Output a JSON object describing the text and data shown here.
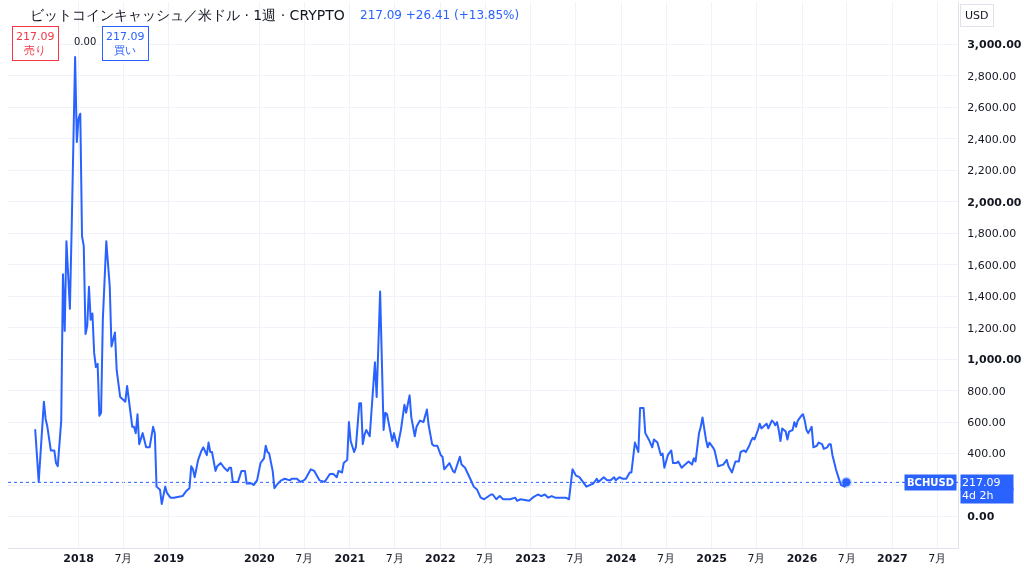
{
  "chart_data": {
    "type": "line",
    "title": "ビットコインキャッシュ／米ドル · 1週 · CRYPTO",
    "subtitle": "217.09 +26.41 (+13.85%)",
    "ylabel": "USD",
    "annotations": [
      "217.09\n売り",
      "0.00",
      "217.09\n買い",
      "217.09",
      "4d 2h"
    ],
    "xlim": [
      "2017-03-22",
      "2027-09-23"
    ],
    "xticks": [
      {
        "value": "2018-01-01",
        "label": "2018"
      },
      {
        "value": "2018-07-01",
        "label": "7月"
      },
      {
        "value": "2019-01-01",
        "label": "2019"
      },
      {
        "value": "2020-01-01",
        "label": "2020"
      },
      {
        "value": "2020-07-01",
        "label": "7月"
      },
      {
        "value": "2021-01-01",
        "label": "2021"
      },
      {
        "value": "2021-07-01",
        "label": "7月"
      },
      {
        "value": "2022-01-01",
        "label": "2022"
      },
      {
        "value": "2022-07-01",
        "label": "7月"
      },
      {
        "value": "2023-01-01",
        "label": "2023"
      },
      {
        "value": "2023-07-01",
        "label": "7月"
      },
      {
        "value": "2024-01-01",
        "label": "2024"
      },
      {
        "value": "2024-07-01",
        "label": "7月"
      },
      {
        "value": "2025-01-01",
        "label": "2025"
      },
      {
        "value": "2025-07-01",
        "label": "7月"
      },
      {
        "value": "2026-01-01",
        "label": "2026"
      },
      {
        "value": "2026-07-01",
        "label": "7月"
      },
      {
        "value": "2027-01-01",
        "label": "2027"
      },
      {
        "value": "2027-07-01",
        "label": "7月"
      }
    ],
    "ylim": [
      -200,
      3270
    ],
    "yticks": [
      {
        "value": 0,
        "label": "0.00"
      },
      {
        "value": 200,
        "label": null
      },
      {
        "value": 400,
        "label": "400.00"
      },
      {
        "value": 600,
        "label": "600.00"
      },
      {
        "value": 800,
        "label": "800.00"
      },
      {
        "value": 1000,
        "label": "1,000.00"
      },
      {
        "value": 1200,
        "label": "1,200.00"
      },
      {
        "value": 1400,
        "label": "1,400.00"
      },
      {
        "value": 1600,
        "label": "1,600.00"
      },
      {
        "value": 1800,
        "label": "1,800.00"
      },
      {
        "value": 2000,
        "label": "2,000.00"
      },
      {
        "value": 2200,
        "label": "2,200.00"
      },
      {
        "value": 2400,
        "label": "2,400.00"
      },
      {
        "value": 2600,
        "label": "2,600.00"
      },
      {
        "value": 2800,
        "label": "2,800.00"
      },
      {
        "value": 3000,
        "label": "3,000.00"
      }
    ],
    "grid": true,
    "ref_lines": [
      {
        "axis": "y",
        "value": 217.09,
        "label": "BCHUSD",
        "color": "#2962ff",
        "line_style": "dotted"
      }
    ],
    "series": [
      {
        "color": "#2962ff",
        "x": [
          "2017-07-10",
          "2017-07-24",
          "2017-08-14",
          "2017-08-21",
          "2017-08-28",
          "2017-09-11",
          "2017-09-25",
          "2017-10-02",
          "2017-10-09",
          "2017-10-23",
          "2017-10-30",
          "2017-11-06",
          "2017-11-13",
          "2017-11-27",
          "2017-12-04",
          "2017-12-18",
          "2017-12-25",
          "2018-01-01",
          "2018-01-08",
          "2018-01-15",
          "2018-01-22",
          "2018-01-29",
          "2018-02-05",
          "2018-02-12",
          "2018-02-19",
          "2018-02-26",
          "2018-03-05",
          "2018-03-12",
          "2018-03-19",
          "2018-03-26",
          "2018-04-02",
          "2018-04-09",
          "2018-04-23",
          "2018-05-07",
          "2018-05-14",
          "2018-05-28",
          "2018-06-04",
          "2018-06-18",
          "2018-06-25",
          "2018-07-09",
          "2018-07-16",
          "2018-08-06",
          "2018-08-13",
          "2018-08-20",
          "2018-08-27",
          "2018-09-03",
          "2018-09-17",
          "2018-10-01",
          "2018-10-15",
          "2018-10-29",
          "2018-11-05",
          "2018-11-12",
          "2018-11-26",
          "2018-12-03",
          "2018-12-17",
          "2018-12-24",
          "2019-01-07",
          "2019-01-21",
          "2019-02-25",
          "2019-03-11",
          "2019-03-25",
          "2019-04-01",
          "2019-04-08",
          "2019-04-15",
          "2019-04-29",
          "2019-05-13",
          "2019-05-20",
          "2019-06-03",
          "2019-06-10",
          "2019-06-17",
          "2019-06-24",
          "2019-07-08",
          "2019-07-15",
          "2019-07-29",
          "2019-08-12",
          "2019-08-26",
          "2019-09-02",
          "2019-09-09",
          "2019-09-16",
          "2019-10-07",
          "2019-10-21",
          "2019-11-04",
          "2019-11-11",
          "2019-12-02",
          "2019-12-09",
          "2019-12-23",
          "2020-01-06",
          "2020-01-20",
          "2020-01-27",
          "2020-02-03",
          "2020-02-10",
          "2020-02-24",
          "2020-03-02",
          "2020-03-16",
          "2020-03-30",
          "2020-04-13",
          "2020-05-04",
          "2020-05-11",
          "2020-06-01",
          "2020-06-15",
          "2020-06-29",
          "2020-07-06",
          "2020-07-27",
          "2020-08-10",
          "2020-08-31",
          "2020-09-21",
          "2020-10-12",
          "2020-10-26",
          "2020-11-09",
          "2020-11-16",
          "2020-11-30",
          "2020-12-07",
          "2020-12-21",
          "2020-12-28",
          "2021-01-04",
          "2021-01-18",
          "2021-01-25",
          "2021-02-08",
          "2021-02-15",
          "2021-02-22",
          "2021-03-01",
          "2021-03-08",
          "2021-03-22",
          "2021-04-12",
          "2021-04-19",
          "2021-05-03",
          "2021-05-17",
          "2021-05-24",
          "2021-05-31",
          "2021-06-07",
          "2021-06-21",
          "2021-06-28",
          "2021-07-12",
          "2021-07-26",
          "2021-08-09",
          "2021-08-16",
          "2021-08-30",
          "2021-09-06",
          "2021-09-20",
          "2021-09-27",
          "2021-10-11",
          "2021-10-25",
          "2021-11-08",
          "2021-11-15",
          "2021-11-29",
          "2021-12-06",
          "2021-12-20",
          "2022-01-03",
          "2022-01-10",
          "2022-01-17",
          "2022-02-07",
          "2022-02-21",
          "2022-02-28",
          "2022-03-21",
          "2022-03-28",
          "2022-04-11",
          "2022-05-02",
          "2022-05-16",
          "2022-05-30",
          "2022-06-13",
          "2022-06-27",
          "2022-07-25",
          "2022-08-01",
          "2022-08-15",
          "2022-08-29",
          "2022-09-12",
          "2022-10-10",
          "2022-10-31",
          "2022-11-07",
          "2022-11-21",
          "2022-12-26",
          "2023-01-09",
          "2023-01-30",
          "2023-02-13",
          "2023-02-27",
          "2023-03-13",
          "2023-03-27",
          "2023-04-10",
          "2023-05-01",
          "2023-05-22",
          "2023-06-05",
          "2023-06-19",
          "2023-07-03",
          "2023-07-17",
          "2023-07-31",
          "2023-08-14",
          "2023-08-28",
          "2023-09-11",
          "2023-09-25",
          "2023-10-02",
          "2023-10-23",
          "2023-11-06",
          "2023-11-20",
          "2023-12-04",
          "2023-12-11",
          "2023-12-25",
          "2024-01-08",
          "2024-01-22",
          "2024-02-05",
          "2024-02-12",
          "2024-02-26",
          "2024-03-11",
          "2024-03-18",
          "2024-04-01",
          "2024-04-08",
          "2024-04-22",
          "2024-05-06",
          "2024-05-13",
          "2024-05-27",
          "2024-06-10",
          "2024-06-17",
          "2024-06-24",
          "2024-07-08",
          "2024-07-22",
          "2024-07-29",
          "2024-08-12",
          "2024-08-19",
          "2024-09-02",
          "2024-09-16",
          "2024-09-30",
          "2024-10-14",
          "2024-10-21",
          "2024-10-28",
          "2024-11-04",
          "2024-11-11",
          "2024-11-18",
          "2024-11-25",
          "2024-12-09",
          "2024-12-16",
          "2024-12-23",
          "2025-01-06",
          "2025-01-13",
          "2025-01-27",
          "2025-02-17",
          "2025-03-03",
          "2025-03-10",
          "2025-03-24",
          "2025-04-07",
          "2025-04-21",
          "2025-04-28",
          "2025-05-12",
          "2025-05-19",
          "2025-06-02",
          "2025-06-09",
          "2025-06-16",
          "2025-06-23",
          "2025-07-07",
          "2025-07-14",
          "2025-07-21",
          "2025-08-04",
          "2025-08-11",
          "2025-08-18",
          "2025-09-01",
          "2025-09-08",
          "2025-09-15",
          "2025-09-22",
          "2025-09-29",
          "2025-10-06",
          "2025-10-13",
          "2025-10-27",
          "2025-11-03",
          "2025-11-10",
          "2025-11-24",
          "2025-12-01",
          "2025-12-08",
          "2025-12-15",
          "2025-12-29",
          "2026-01-05",
          "2026-01-12",
          "2026-01-19",
          "2026-01-26",
          "2026-02-09",
          "2026-02-16",
          "2026-03-02",
          "2026-03-09",
          "2026-03-23",
          "2026-03-30",
          "2026-04-13",
          "2026-04-20",
          "2026-04-27",
          "2026-05-04",
          "2026-05-18",
          "2026-06-01",
          "2026-06-08",
          "2026-06-22",
          "2026-06-29"
        ],
        "values": [
          550,
          220,
          730,
          620,
          570,
          420,
          420,
          340,
          320,
          610,
          1540,
          1180,
          1750,
          1320,
          1820,
          2920,
          2380,
          2530,
          2560,
          1780,
          1720,
          1160,
          1210,
          1460,
          1250,
          1290,
          1040,
          950,
          970,
          640,
          660,
          1250,
          1750,
          1460,
          1080,
          1170,
          930,
          760,
          750,
          730,
          830,
          570,
          570,
          530,
          650,
          460,
          530,
          440,
          440,
          570,
          530,
          190,
          170,
          80,
          190,
          150,
          120,
          120,
          130,
          160,
          180,
          320,
          300,
          250,
          360,
          420,
          440,
          390,
          470,
          410,
          410,
          290,
          320,
          340,
          310,
          290,
          310,
          310,
          220,
          220,
          290,
          290,
          210,
          210,
          200,
          230,
          340,
          370,
          450,
          410,
          400,
          290,
          180,
          210,
          230,
          240,
          230,
          240,
          240,
          220,
          230,
          240,
          300,
          290,
          230,
          220,
          270,
          270,
          250,
          290,
          280,
          340,
          360,
          600,
          480,
          410,
          440,
          720,
          720,
          460,
          520,
          550,
          510,
          980,
          760,
          1430,
          550,
          660,
          650,
          590,
          480,
          530,
          440,
          550,
          710,
          660,
          770,
          630,
          510,
          570,
          610,
          600,
          680,
          580,
          460,
          450,
          450,
          390,
          380,
          300,
          340,
          290,
          280,
          380,
          330,
          310,
          240,
          190,
          170,
          120,
          110,
          140,
          140,
          110,
          130,
          110,
          110,
          120,
          100,
          110,
          100,
          120,
          140,
          130,
          140,
          120,
          130,
          120,
          120,
          120,
          110,
          300,
          260,
          250,
          220,
          190,
          200,
          210,
          240,
          220,
          250,
          230,
          230,
          250,
          230,
          250,
          240,
          240,
          280,
          280,
          470,
          410,
          690,
          690,
          530,
          490,
          440,
          490,
          470,
          390,
          400,
          310,
          390,
          420,
          340,
          340,
          350,
          310,
          330,
          350,
          330,
          370,
          350,
          440,
          530,
          570,
          630,
          490,
          440,
          470,
          440,
          420,
          320,
          330,
          360,
          320,
          280,
          350,
          350,
          410,
          420,
          410,
          450,
          480,
          500,
          490,
          550,
          590,
          560,
          580,
          590,
          560,
          610,
          600,
          580,
          600,
          550,
          480,
          560,
          540,
          490,
          540,
          550,
          600,
          570,
          610,
          640,
          650,
          610,
          550,
          530,
          570,
          440,
          450,
          470,
          460,
          430,
          440,
          460,
          460,
          390,
          300,
          230,
          200,
          190,
          217.09
        ]
      },
      {
        "type": "scatter",
        "marker": "circle",
        "color": "#2962ff",
        "x": [
          "2026-06-29"
        ],
        "values": [
          217.09
        ]
      }
    ]
  }
}
